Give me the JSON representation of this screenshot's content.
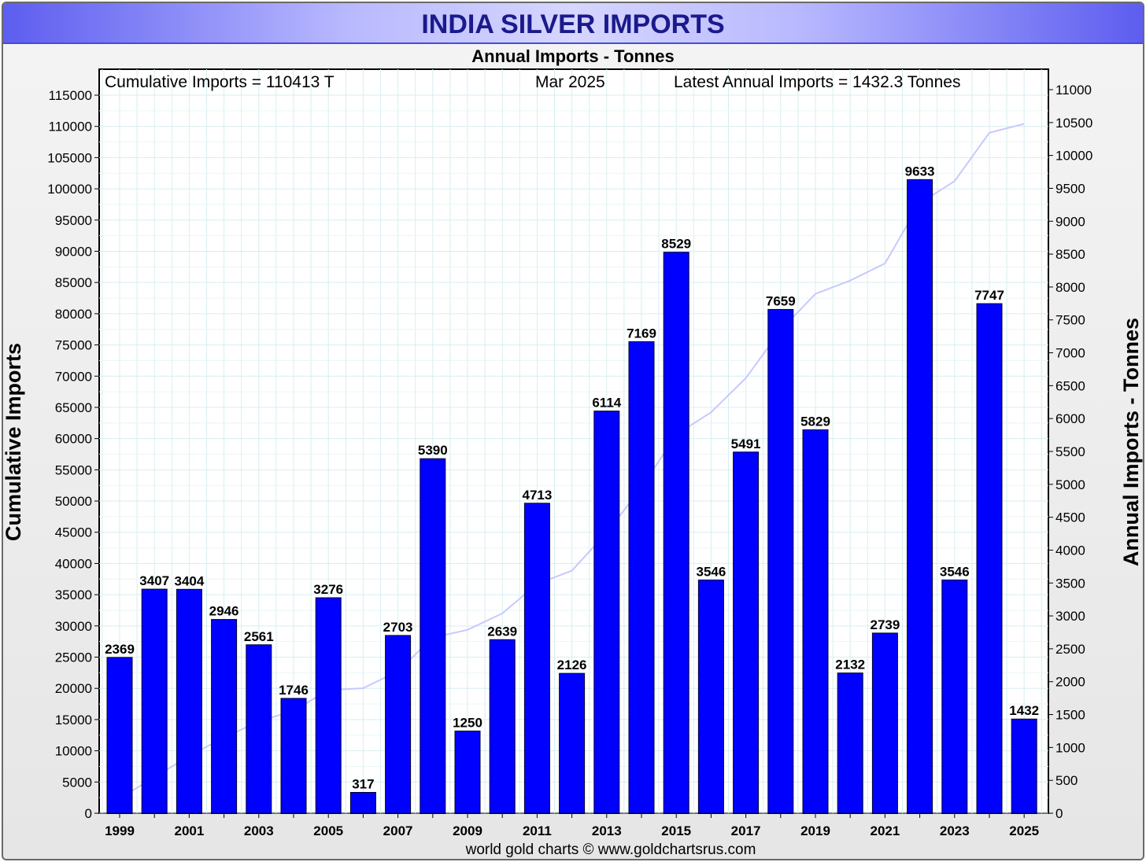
{
  "chart_data": {
    "type": "bar",
    "title": "INDIA SILVER IMPORTS",
    "subtitle": "Annual Imports - Tonnes",
    "ylabel_left": "Cumulative Imports",
    "ylabel_right": "Annual Imports - Tonnes",
    "footer": "world gold charts © www.goldchartsrus.com",
    "annotations": {
      "cumulative": "Cumulative Imports = 110413 T",
      "date": "Mar 2025",
      "latest": "Latest Annual Imports = 1432.3 Tonnes"
    },
    "left_axis": {
      "min": 0,
      "max": 115000,
      "step": 5000
    },
    "right_axis": {
      "min": 0,
      "max": 11000,
      "step": 500
    },
    "grid": true,
    "categories": [
      "1999",
      "2000",
      "2001",
      "2002",
      "2003",
      "2004",
      "2005",
      "2006",
      "2007",
      "2008",
      "2009",
      "2010",
      "2011",
      "2012",
      "2013",
      "2014",
      "2015",
      "2016",
      "2017",
      "2018",
      "2019",
      "2020",
      "2021",
      "2022",
      "2023",
      "2024",
      "2025"
    ],
    "x_tick_labels": [
      "1999",
      "2001",
      "2003",
      "2005",
      "2007",
      "2009",
      "2011",
      "2013",
      "2015",
      "2017",
      "2019",
      "2021",
      "2023",
      "2025"
    ],
    "series": [
      {
        "name": "Annual Imports - Tonnes",
        "axis": "right",
        "color": "#0000ff",
        "values": [
          2369,
          3407,
          3404,
          2946,
          2561,
          1746,
          3276,
          317,
          2703,
          5390,
          1250,
          2639,
          4713,
          2126,
          6114,
          7169,
          8529,
          3546,
          5491,
          7659,
          5829,
          2132,
          2739,
          9633,
          3546,
          7747,
          1432
        ],
        "labels": [
          "2369",
          "3407",
          "3404",
          "2946",
          "2561",
          "1746",
          "3276",
          "317",
          "2703",
          "5390",
          "1250",
          "2639",
          "4713",
          "2126",
          "6114",
          "7169",
          "8529",
          "3546",
          "5491",
          "7659",
          "5829",
          "2132",
          "2739",
          "9633",
          "3546",
          "7747",
          "1432"
        ]
      },
      {
        "name": "Cumulative Imports",
        "axis": "left",
        "type": "line",
        "color": "#c8c8ff",
        "values": [
          2369,
          5776,
          9180,
          12126,
          14687,
          16433,
          19709,
          20026,
          22729,
          28119,
          29369,
          32008,
          36721,
          38847,
          44961,
          52130,
          60659,
          64205,
          69696,
          77355,
          83184,
          85316,
          88055,
          97688,
          101234,
          108981,
          110413
        ]
      }
    ]
  }
}
